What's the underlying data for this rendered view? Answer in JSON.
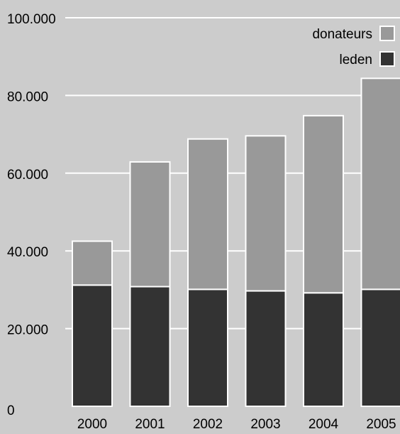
{
  "chart_data": {
    "type": "bar",
    "stacked": true,
    "title": "",
    "xlabel": "",
    "ylabel": "",
    "categories": [
      "2000",
      "2001",
      "2002",
      "2003",
      "2004",
      "2005"
    ],
    "series": [
      {
        "name": "leden",
        "color": "#333333",
        "values": [
          31200,
          30800,
          30100,
          29700,
          29200,
          30100
        ]
      },
      {
        "name": "donateurs",
        "color": "#999999",
        "values": [
          11300,
          32100,
          38700,
          39900,
          45600,
          54300
        ]
      }
    ],
    "ylim": [
      0,
      100000
    ],
    "yticks": [
      {
        "value": 0,
        "label": "0"
      },
      {
        "value": 20000,
        "label": "20.000"
      },
      {
        "value": 40000,
        "label": "40.000"
      },
      {
        "value": 60000,
        "label": "60.000"
      },
      {
        "value": 80000,
        "label": "80.000"
      },
      {
        "value": 100000,
        "label": "100.000"
      }
    ],
    "grid": true,
    "legend": {
      "position": "top-right",
      "entries": [
        {
          "label": "donateurs",
          "color": "#999999"
        },
        {
          "label": "leden",
          "color": "#333333"
        }
      ]
    },
    "colors": {
      "background": "#cccccc",
      "gridline": "#ffffff",
      "bar_outline": "#ffffff"
    }
  }
}
